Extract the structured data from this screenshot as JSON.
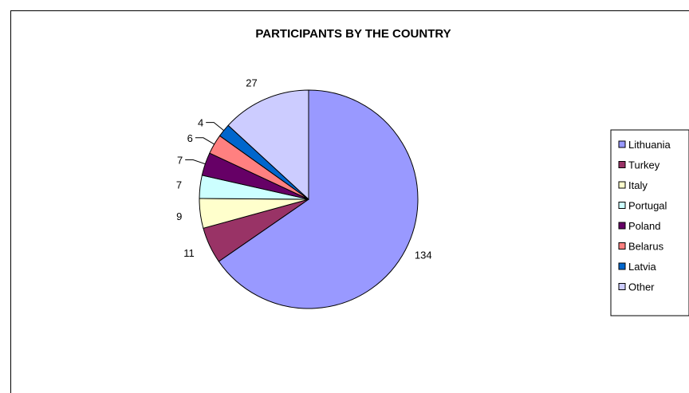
{
  "chart_data": {
    "type": "pie",
    "title": "PARTICIPANTS BY THE COUNTRY",
    "categories": [
      "Lithuania",
      "Turkey",
      "Italy",
      "Portugal",
      "Poland",
      "Belarus",
      "Latvia",
      "Other"
    ],
    "values": [
      134,
      11,
      9,
      7,
      7,
      6,
      4,
      27
    ],
    "colors": [
      "#9999FF",
      "#993366",
      "#FFFFCC",
      "#CCFFFF",
      "#660066",
      "#FF8080",
      "#0066CC",
      "#CCCCFF"
    ],
    "data_labels": [
      "134",
      "11",
      "9",
      "7",
      "7",
      "6",
      "4",
      "27"
    ],
    "legend_position": "right",
    "start_angle_deg": 90,
    "direction": "clockwise"
  }
}
